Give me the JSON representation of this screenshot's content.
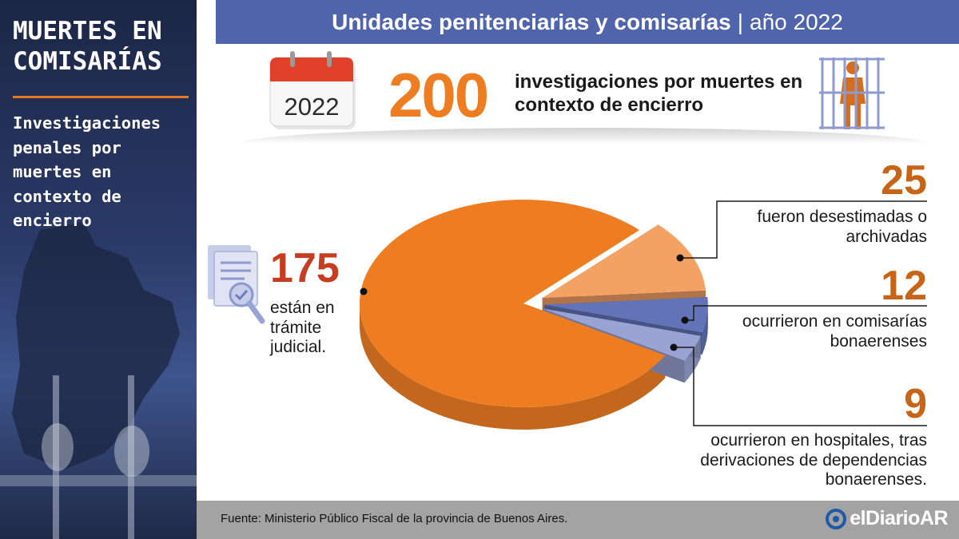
{
  "sidebar": {
    "title": "MUERTES EN COMISARÍAS",
    "subtitle": "Investigaciones penales por muertes en contexto de encierro"
  },
  "header": {
    "title": "Unidades penitenciarias y comisarías",
    "separator": "|",
    "year": "año 2022"
  },
  "summary": {
    "calendar_year": "2022",
    "total": "200",
    "label": "investigaciones por muertes en contexto de encierro"
  },
  "chart_data": {
    "type": "pie",
    "title": "",
    "slices": [
      {
        "value": 175,
        "value_label": "175",
        "text": "están en trámite judicial.",
        "color": "#ee7d22"
      },
      {
        "value": 25,
        "value_label": "25",
        "text": "fueron desestimadas o archivadas",
        "color": "#f4a164"
      },
      {
        "value": 12,
        "value_label": "12",
        "text": "ocurrieron en comisarías bonaerenses",
        "color": "#6273b8"
      },
      {
        "value": 9,
        "value_label": "9",
        "text": "ocurrieron en hospitales, tras derivaciones de dependencias bonaerenses.",
        "color": "#9aa4d4"
      }
    ]
  },
  "footer": {
    "source": "Fuente: Ministerio Público Fiscal de la provincia de Buenos Aires.",
    "brand": "elDiarioAR"
  },
  "colors": {
    "header": "#5064ac",
    "accent": "#ee7d22",
    "footer": "#a3a3a3",
    "sidebar": "#243159"
  },
  "icons": [
    "calendar-icon",
    "prison-icon",
    "document-check-icon",
    "brand-logo-icon"
  ]
}
